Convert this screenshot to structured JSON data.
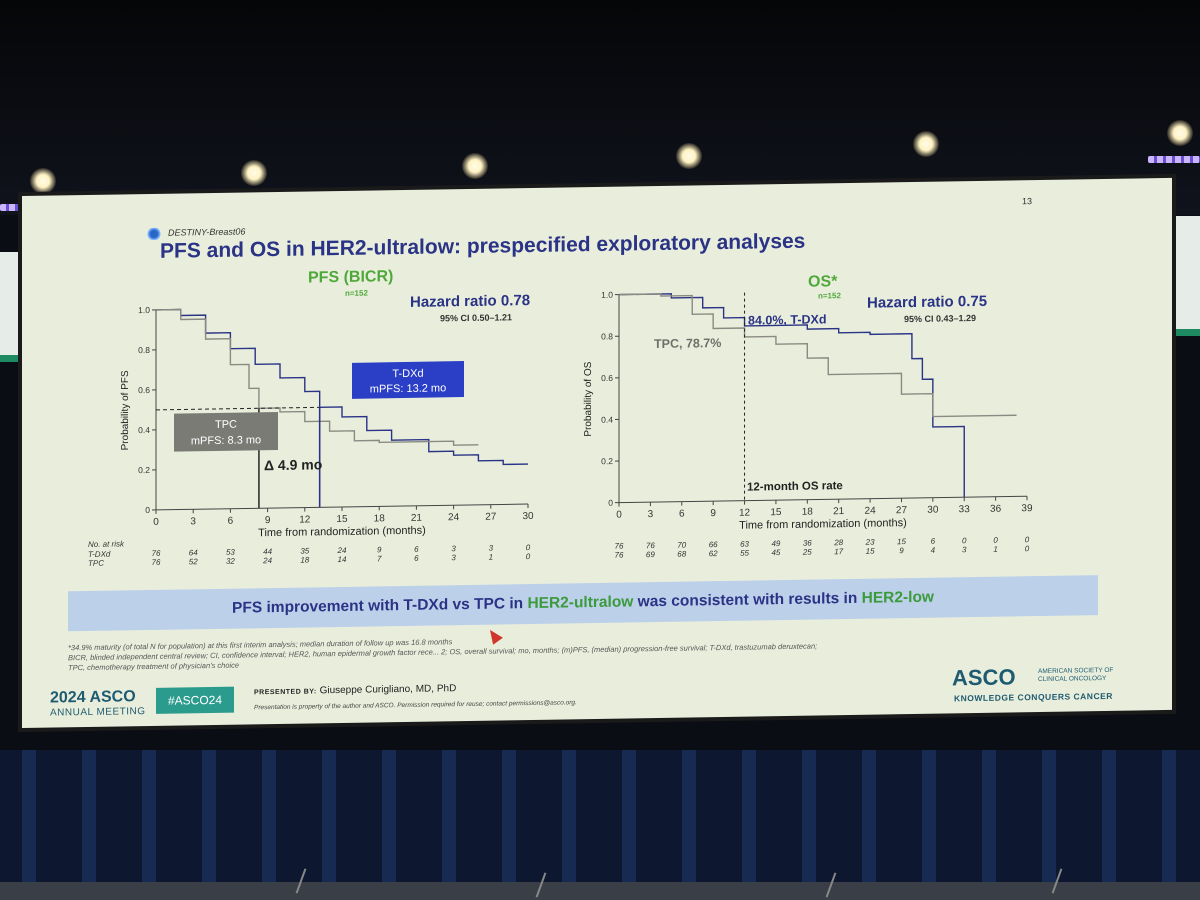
{
  "slide": {
    "number": "13",
    "brand": "DESTINY-Breast06",
    "title": "PFS and OS in HER2-ultralow: prespecified exploratory analyses",
    "banner": {
      "part1": "PFS improvement with T-DXd vs TPC in ",
      "highlight1": "HER2-ultralow",
      "part2": " was consistent with results in ",
      "highlight2": "HER2-low"
    },
    "footnote_line1": "*34.9% maturity (of total N for population) at this first interim analysis; median duration of follow up was 16.8 months",
    "footnote_line2": "BICR, blinded independent central review; CI, confidence interval; HER2, human epidermal growth factor rece... 2; OS, overall survival; mo, months; (m)PFS, (median) progression-free survival; T-DXd, trastuzumab deruxtecan;",
    "footnote_line3": "TPC, chemotherapy treatment of physician's choice",
    "footer": {
      "meeting": "2024 ASCO",
      "meeting_sub": "ANNUAL MEETING",
      "hashtag": "#ASCO24",
      "presented_by_label": "PRESENTED BY:",
      "presenter": "Giuseppe Curigliano, MD, PhD",
      "disclaimer": "Presentation is property of the author and ASCO. Permission required for reuse; contact permissions@asco.org.",
      "logo": "ASCO",
      "logo_sub": "AMERICAN SOCIETY OF CLINICAL ONCOLOGY",
      "tagline": "KNOWLEDGE CONQUERS CANCER"
    }
  },
  "colors": {
    "tdxd": "#2a3385",
    "tpc": "#8a8a82",
    "green": "#4fa83a",
    "banner_bg": "#bcd0ea"
  },
  "chart_data": [
    {
      "type": "line",
      "title": "PFS (BICR)",
      "subtitle": "n=152",
      "hazard_ratio": "Hazard ratio 0.78",
      "ci": "95% CI 0.50–1.21",
      "xlabel": "Time from randomization (months)",
      "ylabel": "Probability of PFS",
      "xlim": [
        0,
        30
      ],
      "ylim": [
        0,
        1.0
      ],
      "x_ticks": [
        0,
        3,
        6,
        9,
        12,
        15,
        18,
        21,
        24,
        27,
        30
      ],
      "y_ticks": [
        0,
        0.2,
        0.4,
        0.6,
        0.8,
        1.0
      ],
      "series": [
        {
          "name": "T-DXd",
          "color": "#2a3385",
          "points": [
            [
              0,
              1.0
            ],
            [
              2,
              0.97
            ],
            [
              4,
              0.88
            ],
            [
              6,
              0.8
            ],
            [
              8,
              0.72
            ],
            [
              10,
              0.65
            ],
            [
              12,
              0.58
            ],
            [
              13.2,
              0.5
            ],
            [
              15,
              0.45
            ],
            [
              17,
              0.38
            ],
            [
              19,
              0.33
            ],
            [
              22,
              0.27
            ],
            [
              24,
              0.25
            ],
            [
              26,
              0.22
            ],
            [
              28,
              0.2
            ],
            [
              30,
              0.2
            ]
          ]
        },
        {
          "name": "TPC",
          "color": "#8a8a82",
          "points": [
            [
              0,
              1.0
            ],
            [
              2,
              0.95
            ],
            [
              4,
              0.85
            ],
            [
              6,
              0.72
            ],
            [
              7.5,
              0.6
            ],
            [
              8.3,
              0.5
            ],
            [
              10,
              0.48
            ],
            [
              12,
              0.43
            ],
            [
              14,
              0.38
            ],
            [
              16,
              0.33
            ],
            [
              18,
              0.32
            ],
            [
              22,
              0.32
            ],
            [
              24,
              0.3
            ],
            [
              26,
              0.3
            ]
          ]
        }
      ],
      "annotations": [
        {
          "label": "T-DXd",
          "text": "mPFS: 13.2 mo"
        },
        {
          "label": "TPC",
          "text": "mPFS: 8.3 mo"
        },
        {
          "text": "Δ 4.9 mo"
        }
      ],
      "risk_table": {
        "header": "No. at risk",
        "rows": [
          {
            "label": "T-DXd",
            "values": [
              "76",
              "64",
              "53",
              "44",
              "35",
              "24",
              "9",
              "6",
              "3",
              "3",
              "0"
            ]
          },
          {
            "label": "TPC",
            "values": [
              "76",
              "52",
              "32",
              "24",
              "18",
              "14",
              "7",
              "6",
              "3",
              "1",
              "0"
            ]
          }
        ]
      }
    },
    {
      "type": "line",
      "title": "OS*",
      "subtitle": "n=152",
      "hazard_ratio": "Hazard ratio 0.75",
      "ci": "95% CI 0.43–1.29",
      "xlabel": "Time from randomization (months)",
      "ylabel": "Probability of OS",
      "xlim": [
        0,
        39
      ],
      "ylim": [
        0,
        1.0
      ],
      "x_ticks": [
        0,
        3,
        6,
        9,
        12,
        15,
        18,
        21,
        24,
        27,
        30,
        33,
        36,
        39
      ],
      "y_ticks": [
        0,
        0.2,
        0.4,
        0.6,
        0.8,
        1.0
      ],
      "series": [
        {
          "name": "T-DXd",
          "color": "#2a3385",
          "points": [
            [
              0,
              1.0
            ],
            [
              3,
              1.0
            ],
            [
              5,
              0.98
            ],
            [
              8,
              0.93
            ],
            [
              10,
              0.88
            ],
            [
              12,
              0.84
            ],
            [
              15,
              0.84
            ],
            [
              18,
              0.82
            ],
            [
              21,
              0.8
            ],
            [
              24,
              0.79
            ],
            [
              27,
              0.79
            ],
            [
              28,
              0.67
            ],
            [
              29,
              0.57
            ],
            [
              30,
              0.34
            ],
            [
              32,
              0.34
            ],
            [
              33,
              0.0
            ]
          ]
        },
        {
          "name": "TPC",
          "color": "#8a8a82",
          "points": [
            [
              0,
              1.0
            ],
            [
              4,
              0.99
            ],
            [
              7,
              0.9
            ],
            [
              9,
              0.83
            ],
            [
              12,
              0.787
            ],
            [
              15,
              0.75
            ],
            [
              18,
              0.68
            ],
            [
              20,
              0.6
            ],
            [
              25,
              0.6
            ],
            [
              27,
              0.5
            ],
            [
              29,
              0.5
            ],
            [
              30,
              0.39
            ],
            [
              33,
              0.39
            ],
            [
              36,
              0.39
            ],
            [
              38,
              0.39
            ]
          ]
        }
      ],
      "annotations": [
        {
          "text": "84.0%, T-DXd"
        },
        {
          "text": "TPC, 78.7%"
        },
        {
          "text": "12-month OS rate"
        }
      ],
      "risk_table": {
        "rows": [
          {
            "label": "T-DXd",
            "values": [
              "76",
              "76",
              "70",
              "66",
              "63",
              "49",
              "36",
              "28",
              "23",
              "15",
              "6",
              "0",
              "0",
              "0"
            ]
          },
          {
            "label": "TPC",
            "values": [
              "76",
              "69",
              "68",
              "62",
              "55",
              "45",
              "25",
              "17",
              "15",
              "9",
              "4",
              "3",
              "1",
              "0"
            ]
          }
        ]
      }
    }
  ]
}
